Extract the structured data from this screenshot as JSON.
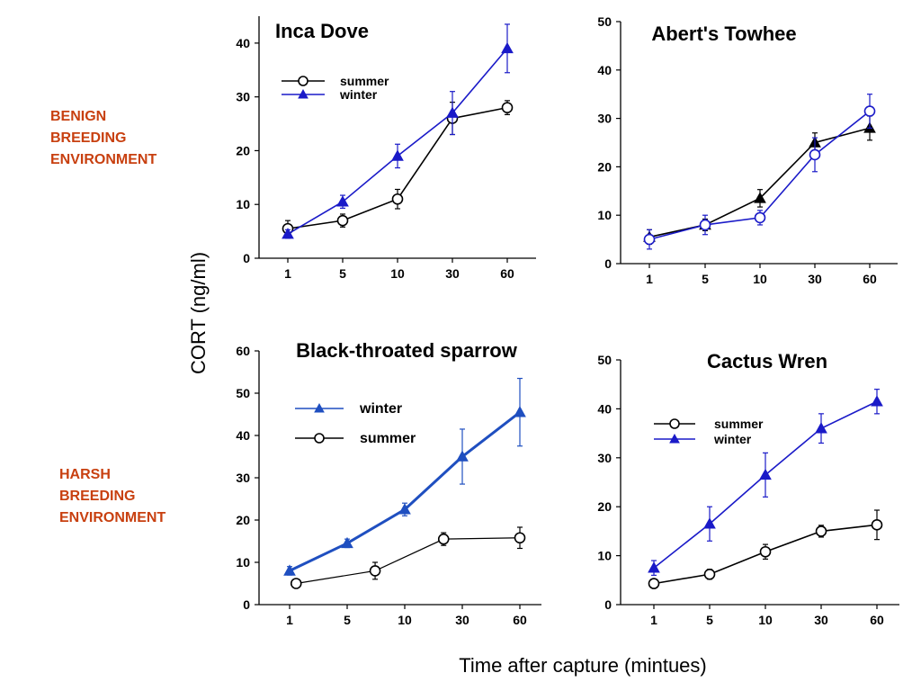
{
  "labels": {
    "env_benign": [
      "BENIGN",
      "BREEDING",
      "ENVIRONMENT"
    ],
    "env_harsh": [
      "HARSH",
      "BREEDING",
      "ENVIRONMENT"
    ],
    "ylabel": "CORT (ng/ml)",
    "xlabel": "Time after capture (mintues)"
  },
  "colors": {
    "summer": "#000000",
    "winter": "#1a1ac8",
    "winter_bts": "#1f4fc0",
    "env_label": "#c84010"
  },
  "chart_data": [
    {
      "type": "line",
      "title": "Inca Dove",
      "categories": [
        "1",
        "5",
        "10",
        "30",
        "60"
      ],
      "ylim": [
        0,
        45
      ],
      "yticks": [
        0,
        10,
        20,
        30,
        40
      ],
      "legend_position": "upper-left",
      "series": [
        {
          "name": "summer",
          "marker": "circle",
          "values": [
            5.5,
            7,
            11,
            26,
            28
          ],
          "errors": [
            1.5,
            1.2,
            1.8,
            3,
            1.3
          ]
        },
        {
          "name": "winter",
          "marker": "triangle",
          "values": [
            4.5,
            10.5,
            19,
            27,
            39
          ],
          "errors": [
            0.8,
            1.2,
            2.2,
            4,
            4.5
          ]
        }
      ]
    },
    {
      "type": "line",
      "title": "Abert's Towhee",
      "categories": [
        "1",
        "5",
        "10",
        "30",
        "60"
      ],
      "ylim": [
        0,
        50
      ],
      "yticks": [
        0,
        10,
        20,
        30,
        40,
        50
      ],
      "series": [
        {
          "marker": "triangle",
          "color_key": "summer",
          "values": [
            5.5,
            8,
            13.5,
            25,
            28
          ],
          "errors": [
            1.5,
            1.2,
            1.8,
            2,
            2.5
          ]
        },
        {
          "marker": "circle",
          "color_key": "winter",
          "values": [
            5,
            8,
            9.5,
            22.5,
            31.5
          ],
          "errors": [
            2,
            2,
            1.5,
            3.5,
            3.5
          ]
        }
      ]
    },
    {
      "type": "line",
      "title": "Black-throated sparrow",
      "categories": [
        "1",
        "5",
        "10",
        "30",
        "60"
      ],
      "ylim": [
        0,
        60
      ],
      "yticks": [
        0,
        10,
        20,
        30,
        40,
        50,
        60
      ],
      "legend_position": "upper-left",
      "series": [
        {
          "name": "winter",
          "marker": "triangle",
          "x": [
            1,
            5,
            10,
            30,
            60
          ],
          "values": [
            8,
            14.5,
            22.5,
            35,
            45.5
          ],
          "errors": [
            1,
            1,
            1.5,
            6.5,
            8
          ]
        },
        {
          "name": "summer",
          "marker": "circle",
          "x": [
            1.2,
            7,
            21,
            60
          ],
          "values": [
            5,
            8,
            15.5,
            15.8
          ],
          "errors": [
            1,
            2,
            1.5,
            2.5
          ]
        }
      ]
    },
    {
      "type": "line",
      "title": "Cactus Wren",
      "categories": [
        "1",
        "5",
        "10",
        "30",
        "60"
      ],
      "ylim": [
        0,
        50
      ],
      "yticks": [
        0,
        10,
        20,
        30,
        40,
        50
      ],
      "legend_position": "upper-left",
      "series": [
        {
          "name": "summer",
          "marker": "circle",
          "values": [
            4.3,
            6.2,
            10.8,
            15,
            16.3
          ],
          "errors": [
            0.8,
            1,
            1.5,
            1.2,
            3
          ]
        },
        {
          "name": "winter",
          "marker": "triangle",
          "values": [
            7.5,
            16.5,
            26.5,
            36,
            41.5
          ],
          "errors": [
            1.5,
            3.5,
            4.5,
            3,
            2.5
          ]
        }
      ]
    }
  ]
}
